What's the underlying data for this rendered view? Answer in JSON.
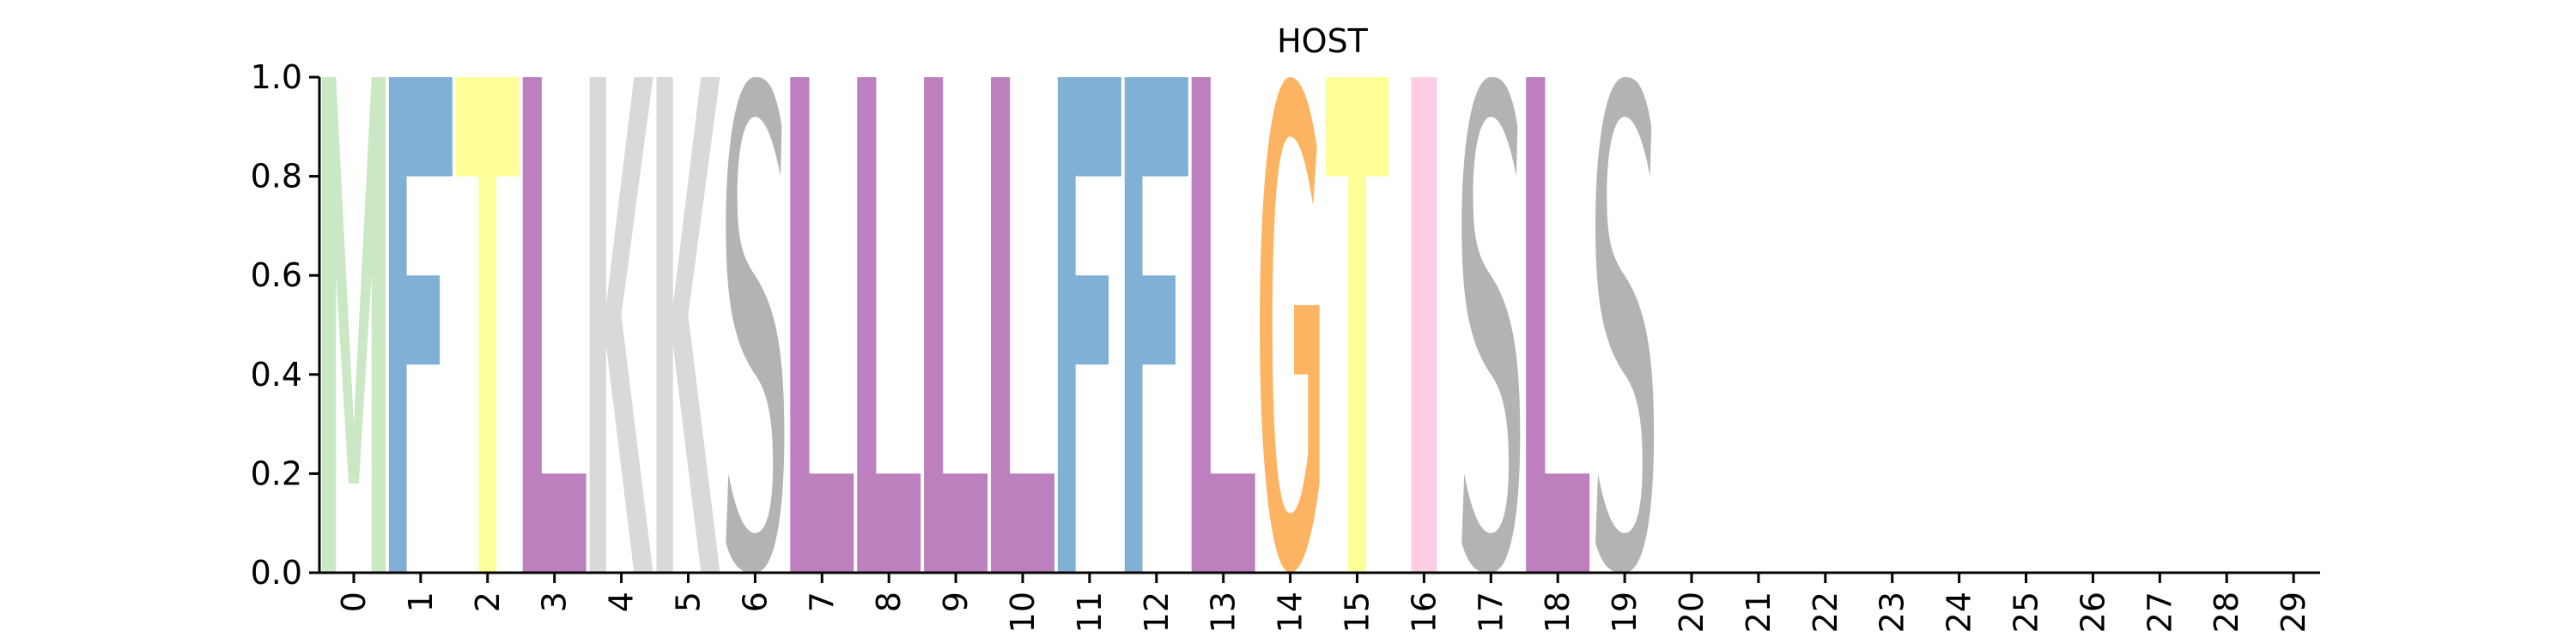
{
  "chart_data": {
    "type": "sequence-logo",
    "title": "HOST",
    "xlabel": "",
    "ylabel": "",
    "ylim": [
      0,
      1
    ],
    "yticks": [
      "0.0",
      "0.2",
      "0.4",
      "0.6",
      "0.8",
      "1.0"
    ],
    "x": [
      "0",
      "1",
      "2",
      "3",
      "4",
      "5",
      "6",
      "7",
      "8",
      "9",
      "10",
      "11",
      "12",
      "13",
      "14",
      "15",
      "16",
      "17",
      "18",
      "19",
      "20",
      "21",
      "22",
      "23",
      "24",
      "25",
      "26",
      "27",
      "28",
      "29"
    ],
    "letters": [
      "M",
      "F",
      "T",
      "L",
      "K",
      "K",
      "S",
      "L",
      "L",
      "L",
      "L",
      "F",
      "F",
      "L",
      "G",
      "T",
      "I",
      "S",
      "L",
      "S",
      "",
      "",
      "",
      "",
      "",
      "",
      "",
      "",
      "",
      ""
    ],
    "heights": [
      1,
      1,
      1,
      1,
      1,
      1,
      1,
      1,
      1,
      1,
      1,
      1,
      1,
      1,
      1,
      1,
      1,
      1,
      1,
      1,
      0,
      0,
      0,
      0,
      0,
      0,
      0,
      0,
      0,
      0
    ],
    "grid": false,
    "color_scheme": {
      "M": "#cbe8c5",
      "F": "#80b0d3",
      "T": "#ffff99",
      "L": "#bc80be",
      "K": "#d9d9d9",
      "S": "#b3b3b3",
      "G": "#fdb462",
      "I": "#fccde5"
    }
  }
}
